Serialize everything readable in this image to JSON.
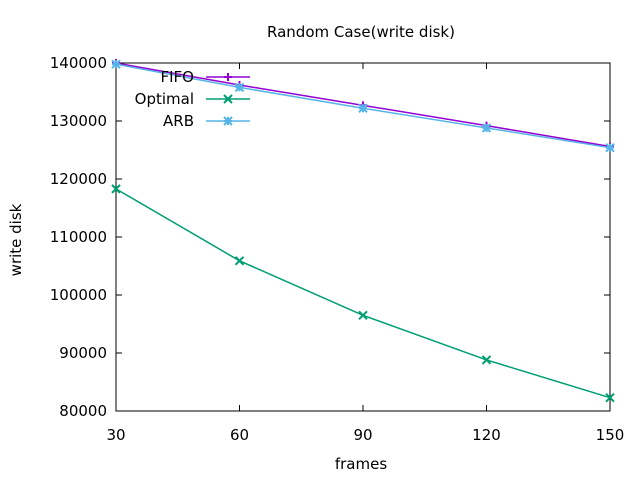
{
  "chart_data": {
    "type": "line",
    "title": "Random Case(write disk)",
    "xlabel": "frames",
    "ylabel": "write disk",
    "x": [
      30,
      60,
      90,
      120,
      150
    ],
    "xlim": [
      30,
      150
    ],
    "ylim": [
      80000,
      140000
    ],
    "xticks": [
      "30",
      "60",
      "90",
      "120",
      "150"
    ],
    "yticks": [
      "80000",
      "90000",
      "100000",
      "110000",
      "120000",
      "130000",
      "140000"
    ],
    "grid": false,
    "legend_position": "top-left",
    "series": [
      {
        "name": "FIFO",
        "color": "#9400d3",
        "marker": "plus",
        "values": [
          140000,
          136200,
          132700,
          129200,
          125600
        ]
      },
      {
        "name": "Optimal",
        "color": "#009e73",
        "marker": "cross",
        "values": [
          118300,
          105900,
          96500,
          88800,
          82300
        ]
      },
      {
        "name": "ARB",
        "color": "#56b4e9",
        "marker": "star",
        "values": [
          139800,
          135800,
          132200,
          128800,
          125400
        ]
      }
    ]
  }
}
